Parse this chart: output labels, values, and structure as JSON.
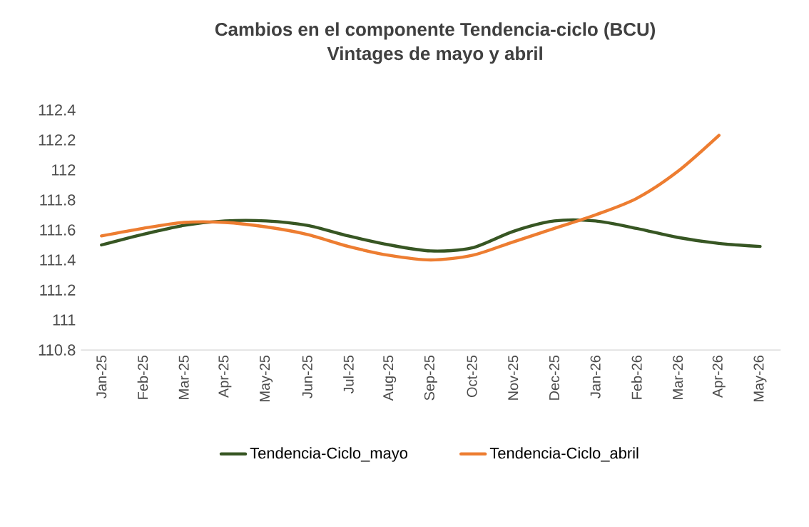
{
  "chart_data": {
    "type": "line",
    "title": "Cambios  en el componente Tendencia-ciclo  (BCU)\nVintages de mayo y abril",
    "categories": [
      "Jan-25",
      "Feb-25",
      "Mar-25",
      "Apr-25",
      "May-25",
      "Jun-25",
      "Jul-25",
      "Aug-25",
      "Sep-25",
      "Oct-25",
      "Nov-25",
      "Dec-25",
      "Jan-26",
      "Feb-26",
      "Mar-26",
      "Apr-26",
      "May-26"
    ],
    "series": [
      {
        "name": "Tendencia-Ciclo_mayo",
        "color": "#375623",
        "values": [
          111.5,
          111.57,
          111.63,
          111.66,
          111.66,
          111.63,
          111.56,
          111.5,
          111.46,
          111.48,
          111.59,
          111.66,
          111.66,
          111.61,
          111.55,
          111.51,
          111.49
        ]
      },
      {
        "name": "Tendencia-Ciclo_abril",
        "color": "#ed7d31",
        "values": [
          111.56,
          111.61,
          111.65,
          111.65,
          111.62,
          111.57,
          111.49,
          111.43,
          111.4,
          111.43,
          111.52,
          111.61,
          111.7,
          111.81,
          111.99,
          112.23,
          null
        ]
      }
    ],
    "ylim": [
      110.8,
      112.4
    ],
    "yticks": [
      110.8,
      111,
      111.2,
      111.4,
      111.6,
      111.8,
      112,
      112.2,
      112.4
    ],
    "legend": "bottom",
    "marker": "none",
    "line_style": "solid",
    "grid": false
  }
}
